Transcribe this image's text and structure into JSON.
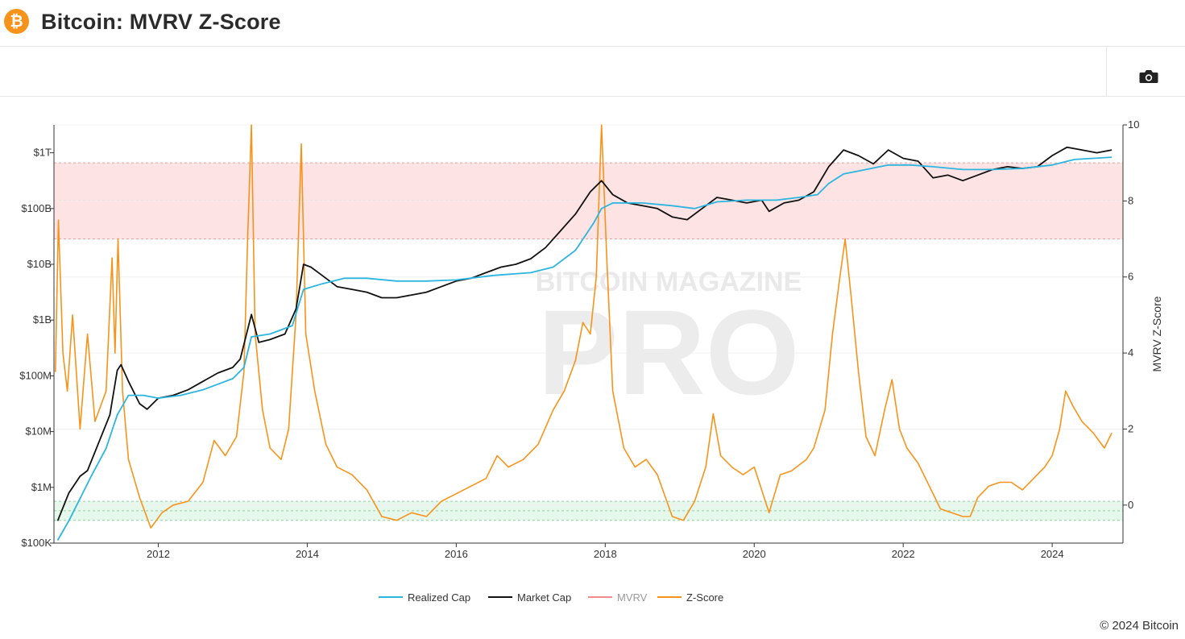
{
  "header": {
    "logo_glyph": "₿",
    "title": "Bitcoin: MVRV Z-Score"
  },
  "toolbar": {
    "camera_icon": "camera-icon"
  },
  "watermark": {
    "line1": "BITCOIN MAGAZINE",
    "line2": "PRO"
  },
  "footer": {
    "copyright": "© 2024 Bitcoin"
  },
  "colors": {
    "realized_cap": "#2bb5e0",
    "market_cap": "#111111",
    "mvrv": "#f08c8c",
    "zscore": "#f7931a",
    "red_band": "#fde3e3",
    "green_band": "#e6f7ec"
  },
  "chart_data": {
    "type": "line",
    "title": "Bitcoin: MVRV Z-Score",
    "x_axis": {
      "ticks": [
        "2012",
        "2014",
        "2016",
        "2018",
        "2020",
        "2022",
        "2024"
      ],
      "range": [
        2010.6,
        2024.95
      ]
    },
    "y_left": {
      "scale": "log",
      "ticks": [
        "$100K",
        "$1M",
        "$10M",
        "$100M",
        "$1B",
        "$10B",
        "$100B",
        "$1T"
      ],
      "range_log10": [
        5,
        12.5
      ]
    },
    "y_right": {
      "label": "MVRV Z-Score",
      "ticks": [
        "0",
        "2",
        "4",
        "6",
        "8",
        "10"
      ],
      "range": [
        -1,
        10
      ]
    },
    "bands": {
      "red_zone_zscore": [
        7,
        9
      ],
      "green_zone_zscore": [
        -0.4,
        0.1
      ]
    },
    "legend": [
      "Realized Cap",
      "Market Cap",
      "MVRV",
      "Z-Score"
    ],
    "legend_placement": "bottom-center",
    "series": [
      {
        "name": "Market Cap",
        "axis": "left",
        "points": [
          [
            2010.65,
            5.4
          ],
          [
            2010.8,
            5.9
          ],
          [
            2010.95,
            6.2
          ],
          [
            2011.05,
            6.3
          ],
          [
            2011.2,
            6.8
          ],
          [
            2011.35,
            7.3
          ],
          [
            2011.45,
            8.1
          ],
          [
            2011.5,
            8.2
          ],
          [
            2011.6,
            7.9
          ],
          [
            2011.75,
            7.5
          ],
          [
            2011.85,
            7.4
          ],
          [
            2012.0,
            7.6
          ],
          [
            2012.2,
            7.65
          ],
          [
            2012.4,
            7.75
          ],
          [
            2012.6,
            7.9
          ],
          [
            2012.8,
            8.05
          ],
          [
            2013.0,
            8.15
          ],
          [
            2013.1,
            8.3
          ],
          [
            2013.25,
            9.1
          ],
          [
            2013.35,
            8.6
          ],
          [
            2013.5,
            8.65
          ],
          [
            2013.7,
            8.75
          ],
          [
            2013.85,
            9.2
          ],
          [
            2013.95,
            10.0
          ],
          [
            2014.05,
            9.95
          ],
          [
            2014.2,
            9.8
          ],
          [
            2014.4,
            9.6
          ],
          [
            2014.6,
            9.55
          ],
          [
            2014.8,
            9.5
          ],
          [
            2015.0,
            9.4
          ],
          [
            2015.2,
            9.4
          ],
          [
            2015.4,
            9.45
          ],
          [
            2015.6,
            9.5
          ],
          [
            2015.8,
            9.6
          ],
          [
            2016.0,
            9.7
          ],
          [
            2016.2,
            9.75
          ],
          [
            2016.4,
            9.85
          ],
          [
            2016.6,
            9.95
          ],
          [
            2016.8,
            10.0
          ],
          [
            2017.0,
            10.1
          ],
          [
            2017.2,
            10.3
          ],
          [
            2017.4,
            10.6
          ],
          [
            2017.6,
            10.9
          ],
          [
            2017.8,
            11.3
          ],
          [
            2017.95,
            11.5
          ],
          [
            2018.1,
            11.25
          ],
          [
            2018.3,
            11.1
          ],
          [
            2018.5,
            11.05
          ],
          [
            2018.7,
            11.0
          ],
          [
            2018.9,
            10.85
          ],
          [
            2019.1,
            10.8
          ],
          [
            2019.3,
            11.0
          ],
          [
            2019.5,
            11.2
          ],
          [
            2019.7,
            11.15
          ],
          [
            2019.9,
            11.1
          ],
          [
            2020.1,
            11.15
          ],
          [
            2020.2,
            10.95
          ],
          [
            2020.4,
            11.1
          ],
          [
            2020.6,
            11.15
          ],
          [
            2020.8,
            11.3
          ],
          [
            2021.0,
            11.75
          ],
          [
            2021.2,
            12.05
          ],
          [
            2021.4,
            11.95
          ],
          [
            2021.6,
            11.8
          ],
          [
            2021.8,
            12.05
          ],
          [
            2022.0,
            11.9
          ],
          [
            2022.2,
            11.85
          ],
          [
            2022.4,
            11.55
          ],
          [
            2022.6,
            11.6
          ],
          [
            2022.8,
            11.5
          ],
          [
            2023.0,
            11.6
          ],
          [
            2023.2,
            11.7
          ],
          [
            2023.4,
            11.75
          ],
          [
            2023.6,
            11.72
          ],
          [
            2023.8,
            11.75
          ],
          [
            2024.0,
            11.95
          ],
          [
            2024.2,
            12.1
          ],
          [
            2024.4,
            12.05
          ],
          [
            2024.6,
            12.0
          ],
          [
            2024.8,
            12.05
          ]
        ]
      },
      {
        "name": "Realized Cap",
        "axis": "left",
        "points": [
          [
            2010.65,
            5.05
          ],
          [
            2010.8,
            5.4
          ],
          [
            2010.95,
            5.8
          ],
          [
            2011.1,
            6.2
          ],
          [
            2011.3,
            6.7
          ],
          [
            2011.45,
            7.3
          ],
          [
            2011.6,
            7.65
          ],
          [
            2011.8,
            7.65
          ],
          [
            2012.0,
            7.6
          ],
          [
            2012.3,
            7.65
          ],
          [
            2012.6,
            7.75
          ],
          [
            2012.8,
            7.85
          ],
          [
            2013.0,
            7.95
          ],
          [
            2013.15,
            8.15
          ],
          [
            2013.25,
            8.7
          ],
          [
            2013.5,
            8.75
          ],
          [
            2013.8,
            8.9
          ],
          [
            2013.95,
            9.55
          ],
          [
            2014.2,
            9.65
          ],
          [
            2014.5,
            9.75
          ],
          [
            2014.8,
            9.75
          ],
          [
            2015.2,
            9.7
          ],
          [
            2015.6,
            9.7
          ],
          [
            2016.0,
            9.72
          ],
          [
            2016.5,
            9.8
          ],
          [
            2017.0,
            9.85
          ],
          [
            2017.3,
            9.95
          ],
          [
            2017.6,
            10.25
          ],
          [
            2017.85,
            10.75
          ],
          [
            2017.95,
            11.0
          ],
          [
            2018.1,
            11.1
          ],
          [
            2018.5,
            11.1
          ],
          [
            2018.9,
            11.05
          ],
          [
            2019.2,
            11.0
          ],
          [
            2019.5,
            11.12
          ],
          [
            2019.9,
            11.15
          ],
          [
            2020.3,
            11.15
          ],
          [
            2020.6,
            11.2
          ],
          [
            2020.85,
            11.25
          ],
          [
            2021.0,
            11.45
          ],
          [
            2021.2,
            11.62
          ],
          [
            2021.5,
            11.7
          ],
          [
            2021.8,
            11.78
          ],
          [
            2022.1,
            11.78
          ],
          [
            2022.4,
            11.75
          ],
          [
            2022.8,
            11.7
          ],
          [
            2023.2,
            11.7
          ],
          [
            2023.6,
            11.72
          ],
          [
            2024.0,
            11.78
          ],
          [
            2024.3,
            11.88
          ],
          [
            2024.8,
            11.92
          ]
        ]
      },
      {
        "name": "Z-Score",
        "axis": "right",
        "points": [
          [
            2010.62,
            3.5
          ],
          [
            2010.66,
            7.5
          ],
          [
            2010.72,
            4.0
          ],
          [
            2010.78,
            3.0
          ],
          [
            2010.85,
            5.0
          ],
          [
            2010.95,
            2.0
          ],
          [
            2011.05,
            4.5
          ],
          [
            2011.15,
            2.2
          ],
          [
            2011.3,
            3.0
          ],
          [
            2011.38,
            6.5
          ],
          [
            2011.42,
            4.0
          ],
          [
            2011.46,
            7.0
          ],
          [
            2011.52,
            3.0
          ],
          [
            2011.6,
            1.2
          ],
          [
            2011.75,
            0.2
          ],
          [
            2011.9,
            -0.6
          ],
          [
            2012.05,
            -0.2
          ],
          [
            2012.2,
            0.0
          ],
          [
            2012.4,
            0.1
          ],
          [
            2012.6,
            0.6
          ],
          [
            2012.75,
            1.7
          ],
          [
            2012.9,
            1.3
          ],
          [
            2013.05,
            1.8
          ],
          [
            2013.15,
            3.5
          ],
          [
            2013.2,
            7.0
          ],
          [
            2013.25,
            10.0
          ],
          [
            2013.3,
            4.5
          ],
          [
            2013.4,
            2.5
          ],
          [
            2013.5,
            1.5
          ],
          [
            2013.65,
            1.2
          ],
          [
            2013.75,
            2.0
          ],
          [
            2013.85,
            5.0
          ],
          [
            2013.92,
            9.5
          ],
          [
            2013.98,
            4.5
          ],
          [
            2014.1,
            3.0
          ],
          [
            2014.25,
            1.6
          ],
          [
            2014.4,
            1.0
          ],
          [
            2014.6,
            0.8
          ],
          [
            2014.8,
            0.4
          ],
          [
            2015.0,
            -0.3
          ],
          [
            2015.2,
            -0.4
          ],
          [
            2015.4,
            -0.2
          ],
          [
            2015.6,
            -0.3
          ],
          [
            2015.8,
            0.1
          ],
          [
            2016.0,
            0.3
          ],
          [
            2016.2,
            0.5
          ],
          [
            2016.4,
            0.7
          ],
          [
            2016.55,
            1.3
          ],
          [
            2016.7,
            1.0
          ],
          [
            2016.9,
            1.2
          ],
          [
            2017.1,
            1.6
          ],
          [
            2017.3,
            2.5
          ],
          [
            2017.45,
            3.0
          ],
          [
            2017.6,
            3.8
          ],
          [
            2017.7,
            4.8
          ],
          [
            2017.8,
            4.5
          ],
          [
            2017.88,
            6.0
          ],
          [
            2017.95,
            10.0
          ],
          [
            2018.02,
            6.5
          ],
          [
            2018.1,
            3.0
          ],
          [
            2018.25,
            1.5
          ],
          [
            2018.4,
            1.0
          ],
          [
            2018.55,
            1.2
          ],
          [
            2018.7,
            0.8
          ],
          [
            2018.9,
            -0.3
          ],
          [
            2019.05,
            -0.4
          ],
          [
            2019.2,
            0.1
          ],
          [
            2019.35,
            1.0
          ],
          [
            2019.45,
            2.4
          ],
          [
            2019.55,
            1.3
          ],
          [
            2019.7,
            1.0
          ],
          [
            2019.85,
            0.8
          ],
          [
            2020.0,
            1.0
          ],
          [
            2020.2,
            -0.2
          ],
          [
            2020.35,
            0.8
          ],
          [
            2020.5,
            0.9
          ],
          [
            2020.7,
            1.2
          ],
          [
            2020.8,
            1.5
          ],
          [
            2020.95,
            2.5
          ],
          [
            2021.05,
            4.5
          ],
          [
            2021.15,
            6.0
          ],
          [
            2021.22,
            7.0
          ],
          [
            2021.3,
            5.5
          ],
          [
            2021.4,
            3.5
          ],
          [
            2021.5,
            1.8
          ],
          [
            2021.62,
            1.3
          ],
          [
            2021.75,
            2.5
          ],
          [
            2021.85,
            3.3
          ],
          [
            2021.95,
            2.0
          ],
          [
            2022.05,
            1.5
          ],
          [
            2022.2,
            1.1
          ],
          [
            2022.35,
            0.5
          ],
          [
            2022.5,
            -0.1
          ],
          [
            2022.65,
            -0.2
          ],
          [
            2022.8,
            -0.3
          ],
          [
            2022.9,
            -0.3
          ],
          [
            2023.0,
            0.2
          ],
          [
            2023.15,
            0.5
          ],
          [
            2023.3,
            0.6
          ],
          [
            2023.45,
            0.6
          ],
          [
            2023.6,
            0.4
          ],
          [
            2023.75,
            0.7
          ],
          [
            2023.9,
            1.0
          ],
          [
            2024.0,
            1.3
          ],
          [
            2024.1,
            2.0
          ],
          [
            2024.18,
            3.0
          ],
          [
            2024.28,
            2.6
          ],
          [
            2024.4,
            2.2
          ],
          [
            2024.55,
            1.9
          ],
          [
            2024.7,
            1.5
          ],
          [
            2024.8,
            1.9
          ]
        ]
      }
    ]
  }
}
